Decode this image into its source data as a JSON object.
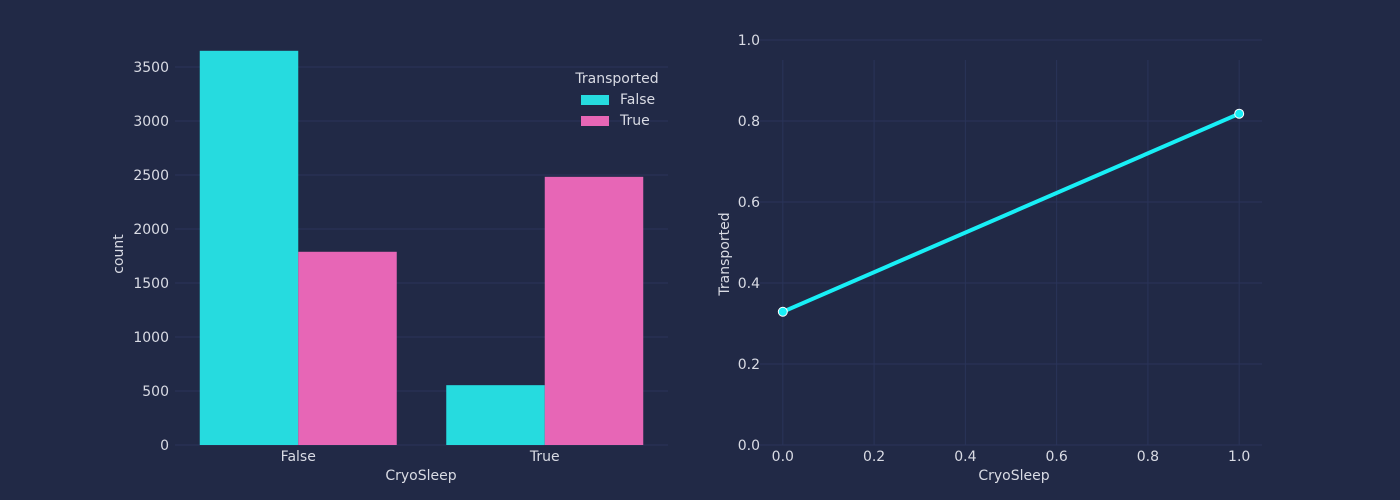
{
  "colors": {
    "background": "#212946",
    "grid": "#2A3459",
    "series_false": "#26DBDF",
    "series_true": "#E766B6",
    "line": "#18EFF6",
    "text": "#D9DBE4"
  },
  "chart_data": [
    {
      "type": "bar",
      "title": "",
      "xlabel": "CryoSleep",
      "ylabel": "count",
      "categories": [
        "False",
        "True"
      ],
      "series": [
        {
          "name": "False",
          "values": [
            3650,
            554
          ]
        },
        {
          "name": "True",
          "values": [
            1789,
            2483
          ]
        }
      ],
      "ylim": [
        0,
        3750
      ],
      "yticks": [
        0,
        500,
        1000,
        1500,
        2000,
        2500,
        3000,
        3500
      ],
      "legend": {
        "title": "Transported",
        "placement": "top-right"
      },
      "grid": "y"
    },
    {
      "type": "line",
      "title": "",
      "xlabel": "CryoSleep",
      "ylabel": "Transported",
      "x": [
        0.0,
        1.0
      ],
      "y": [
        0.329,
        0.818
      ],
      "xlim": [
        -0.05,
        1.05
      ],
      "ylim": [
        0.0,
        1.0
      ],
      "xticks": [
        "0.0",
        "0.2",
        "0.4",
        "0.6",
        "0.8",
        "1.0"
      ],
      "yticks": [
        "0.0",
        "0.2",
        "0.4",
        "0.6",
        "0.8",
        "1.0"
      ],
      "grid": "both"
    }
  ]
}
